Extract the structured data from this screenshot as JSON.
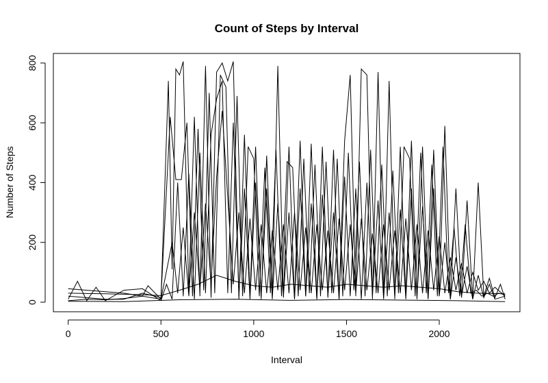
{
  "chart_data": {
    "type": "line",
    "title": "Count of Steps by Interval",
    "xlabel": "Interval",
    "ylabel": "Number of Steps",
    "xlim": [
      -80,
      2435
    ],
    "ylim": [
      -32,
      832
    ],
    "x_ticks": [
      0,
      500,
      1000,
      1500,
      2000
    ],
    "x_tick_labels": [
      "0",
      "500",
      "1000",
      "1500",
      "2000"
    ],
    "y_ticks": [
      0,
      200,
      400,
      600,
      800
    ],
    "y_tick_labels": [
      "0",
      "200",
      "400",
      "600",
      "800"
    ],
    "grid": false,
    "legend": "none",
    "line_color": "#000000",
    "series": [
      {
        "x": [
          0,
          100,
          200,
          300,
          400,
          430,
          500,
          540,
          560,
          580,
          600,
          620,
          650,
          680,
          710,
          740,
          770,
          800,
          830,
          860,
          890,
          920,
          950,
          980,
          1010,
          1040,
          1070,
          1100,
          1130,
          1160,
          1190,
          1220,
          1250,
          1280,
          1310,
          1340,
          1370,
          1400,
          1430,
          1460,
          1490,
          1520,
          1550,
          1580,
          1610,
          1640,
          1670,
          1700,
          1730,
          1760,
          1790,
          1820,
          1850,
          1880,
          1910,
          1940,
          1970,
          2000,
          2030,
          2060,
          2090,
          2120,
          2150,
          2180,
          2210,
          2240,
          2270,
          2300,
          2330,
          2355
        ],
        "y": [
          45,
          40,
          35,
          30,
          20,
          55,
          10,
          740,
          110,
          780,
          760,
          805,
          30,
          620,
          20,
          790,
          15,
          770,
          800,
          740,
          805,
          10,
          560,
          20,
          520,
          10,
          490,
          20,
          790,
          15,
          520,
          10,
          540,
          20,
          530,
          10,
          520,
          15,
          510,
          10,
          540,
          760,
          20,
          780,
          760,
          10,
          770,
          20,
          740,
          10,
          520,
          20,
          540,
          10,
          520,
          15,
          510,
          20,
          590,
          10,
          380,
          15,
          340,
          10,
          400,
          20,
          80,
          15,
          60,
          10
        ]
      },
      {
        "x": [
          0,
          100,
          200,
          300,
          400,
          500,
          550,
          580,
          610,
          640,
          670,
          700,
          730,
          760,
          790,
          820,
          850,
          880,
          910,
          940,
          970,
          1000,
          1030,
          1060,
          1090,
          1120,
          1150,
          1180,
          1210,
          1240,
          1270,
          1300,
          1330,
          1360,
          1390,
          1420,
          1450,
          1480,
          1510,
          1540,
          1570,
          1600,
          1630,
          1660,
          1690,
          1720,
          1750,
          1780,
          1810,
          1840,
          1870,
          1900,
          1930,
          1960,
          1990,
          2020,
          2050,
          2080,
          2110,
          2140,
          2170,
          2200,
          2230,
          2260,
          2290,
          2320,
          2355
        ],
        "y": [
          20,
          15,
          10,
          10,
          30,
          15,
          620,
          410,
          410,
          600,
          20,
          580,
          40,
          700,
          30,
          760,
          720,
          30,
          690,
          20,
          520,
          480,
          20,
          450,
          30,
          510,
          20,
          470,
          450,
          20,
          480,
          30,
          460,
          20,
          470,
          30,
          480,
          20,
          500,
          40,
          470,
          20,
          510,
          30,
          460,
          20,
          440,
          30,
          520,
          480,
          20,
          500,
          30,
          460,
          20,
          520,
          30,
          250,
          20,
          260,
          30,
          40,
          20,
          30,
          20,
          30,
          25
        ]
      },
      {
        "x": [
          0,
          50,
          100,
          150,
          200,
          300,
          400,
          500,
          530,
          560,
          590,
          620,
          650,
          680,
          710,
          740,
          770,
          800,
          830,
          860,
          890,
          920,
          950,
          980,
          1010,
          1040,
          1070,
          1100,
          1130,
          1160,
          1190,
          1220,
          1250,
          1280,
          1310,
          1340,
          1370,
          1400,
          1430,
          1460,
          1490,
          1520,
          1550,
          1580,
          1610,
          1640,
          1670,
          1700,
          1730,
          1760,
          1790,
          1820,
          1850,
          1880,
          1910,
          1940,
          1970,
          2000,
          2030,
          2060,
          2090,
          2120,
          2150,
          2180,
          2210,
          2240,
          2270,
          2300,
          2355
        ],
        "y": [
          10,
          70,
          5,
          50,
          5,
          40,
          45,
          5,
          60,
          10,
          400,
          20,
          430,
          10,
          500,
          30,
          560,
          680,
          740,
          30,
          600,
          20,
          380,
          10,
          400,
          20,
          380,
          10,
          330,
          20,
          300,
          10,
          380,
          20,
          330,
          10,
          360,
          20,
          300,
          10,
          420,
          20,
          380,
          10,
          400,
          20,
          340,
          10,
          300,
          20,
          310,
          10,
          380,
          20,
          320,
          10,
          380,
          20,
          200,
          10,
          150,
          20,
          120,
          10,
          90,
          15,
          60,
          10,
          20
        ]
      },
      {
        "x": [
          0,
          100,
          200,
          300,
          400,
          500,
          560,
          590,
          620,
          650,
          680,
          710,
          740,
          770,
          800,
          830,
          860,
          890,
          920,
          950,
          980,
          1010,
          1040,
          1070,
          1100,
          1130,
          1160,
          1190,
          1220,
          1250,
          1280,
          1310,
          1340,
          1370,
          1400,
          1430,
          1460,
          1490,
          1520,
          1550,
          1580,
          1610,
          1640,
          1670,
          1700,
          1730,
          1760,
          1790,
          1820,
          1850,
          1880,
          1910,
          1940,
          1970,
          2000,
          2030,
          2060,
          2090,
          2120,
          2150,
          2180,
          2210,
          2240,
          2270,
          2300,
          2355
        ],
        "y": [
          5,
          10,
          8,
          12,
          20,
          10,
          200,
          30,
          250,
          20,
          300,
          40,
          330,
          60,
          420,
          640,
          350,
          60,
          300,
          30,
          280,
          40,
          260,
          30,
          240,
          40,
          260,
          30,
          300,
          40,
          250,
          30,
          260,
          40,
          240,
          30,
          280,
          40,
          260,
          30,
          280,
          40,
          230,
          30,
          260,
          40,
          240,
          30,
          280,
          40,
          260,
          30,
          240,
          40,
          220,
          30,
          150,
          40,
          130,
          30,
          100,
          40,
          70,
          30,
          50,
          20
        ]
      },
      {
        "x": [
          0,
          200,
          400,
          500,
          600,
          700,
          800,
          850,
          900,
          1000,
          1100,
          1200,
          1300,
          1400,
          1500,
          1600,
          1700,
          1800,
          1900,
          2000,
          2100,
          2200,
          2355
        ],
        "y": [
          30,
          28,
          25,
          22,
          40,
          60,
          90,
          80,
          70,
          55,
          50,
          60,
          55,
          50,
          60,
          55,
          50,
          55,
          50,
          45,
          35,
          30,
          28
        ]
      },
      {
        "x": [
          0,
          300,
          600,
          900,
          1200,
          1500,
          1800,
          2100,
          2355
        ],
        "y": [
          3,
          2,
          8,
          10,
          6,
          9,
          7,
          5,
          2
        ]
      }
    ]
  }
}
